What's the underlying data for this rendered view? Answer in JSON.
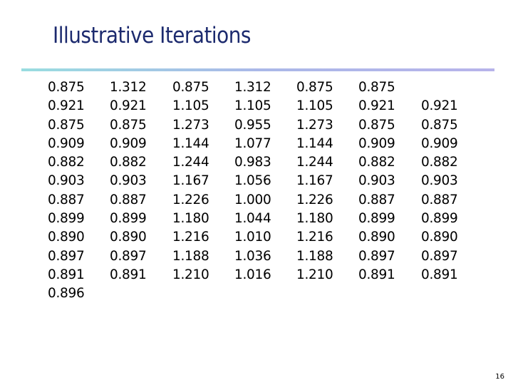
{
  "title": "Illustrative Iterations",
  "columns": [
    [
      "0.875",
      "0.921",
      "0.875",
      "0.909",
      "0.882",
      "0.903",
      "0.887",
      "0.899",
      "0.890",
      "0.897",
      "0.891",
      "0.896"
    ],
    [
      "1.312",
      "0.921",
      "0.875",
      "0.909",
      "0.882",
      "0.903",
      "0.887",
      "0.899",
      "0.890",
      "0.897",
      "0.891"
    ],
    [
      "0.875",
      "1.105",
      "1.273",
      "1.144",
      "1.244",
      "1.167",
      "1.226",
      "1.180",
      "1.216",
      "1.188",
      "1.210"
    ],
    [
      "1.312",
      "1.105",
      "0.955",
      "1.077",
      "0.983",
      "1.056",
      "1.000",
      "1.044",
      "1.010",
      "1.036",
      "1.016"
    ],
    [
      "0.875",
      "1.105",
      "1.273",
      "1.144",
      "1.244",
      "1.167",
      "1.226",
      "1.180",
      "1.216",
      "1.188",
      "1.210"
    ],
    [
      "0.875",
      "0.921",
      "0.875",
      "0.909",
      "0.882",
      "0.903",
      "0.887",
      "0.899",
      "0.890",
      "0.897",
      "0.891"
    ],
    [
      "0.921",
      "0.875",
      "0.909",
      "0.882",
      "0.903",
      "0.887",
      "0.899",
      "0.890",
      "0.897",
      "0.891"
    ]
  ],
  "page_number": "16"
}
